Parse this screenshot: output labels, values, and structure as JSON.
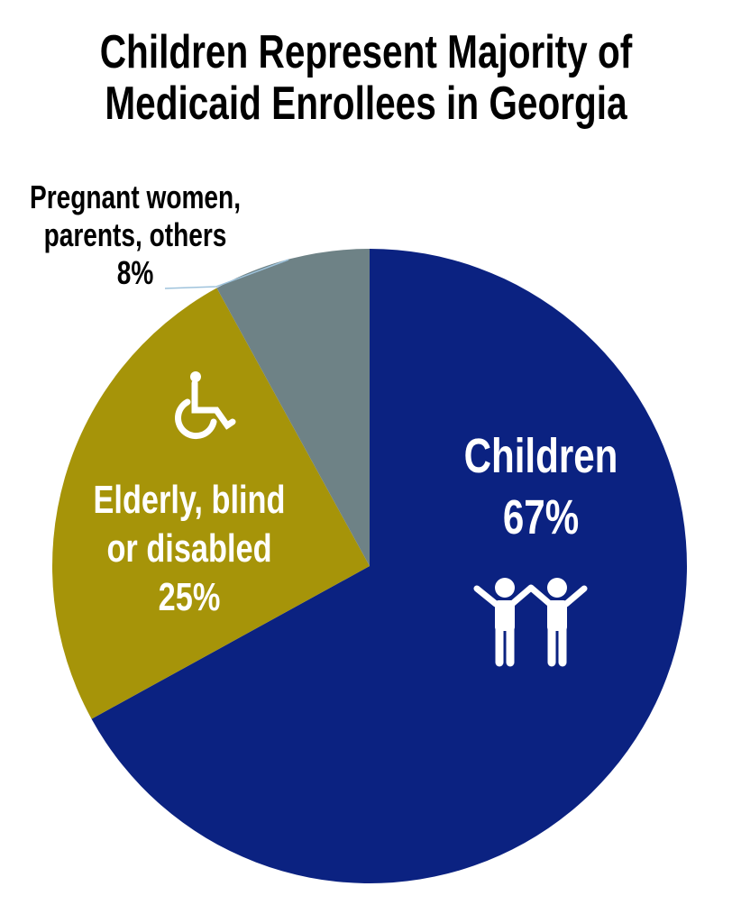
{
  "chart_data": {
    "type": "pie",
    "title": [
      "Children Represent Majority of",
      "Medicaid Enrollees in Georgia"
    ],
    "slices": [
      {
        "label": "Children",
        "value": 67,
        "value_label": "67%",
        "color": "#0b2281",
        "icon": "children-icon"
      },
      {
        "label": "Elderly, blind or disabled",
        "label_lines": [
          "Elderly, blind",
          "or disabled"
        ],
        "value": 25,
        "value_label": "25%",
        "color": "#a69409",
        "icon": "wheelchair-icon"
      },
      {
        "label": "Pregnant women, parents, others",
        "label_lines": [
          "Pregnant women,",
          "parents, others"
        ],
        "value": 8,
        "value_label": "8%",
        "color": "#6e8286",
        "icon": ""
      }
    ],
    "start_angle": "12 o'clock",
    "direction": "clockwise"
  }
}
